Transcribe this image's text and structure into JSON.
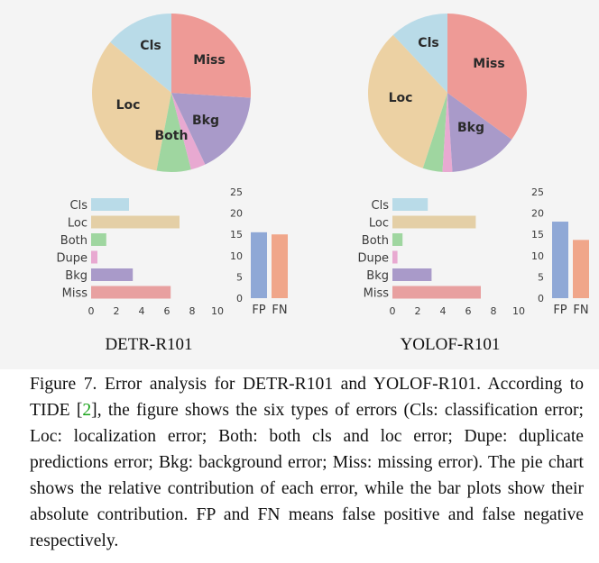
{
  "chart_data": [
    {
      "type": "pie",
      "title": "DETR-R101",
      "categories": [
        "Cls",
        "Loc",
        "Both",
        "Dupe",
        "Bkg",
        "Miss"
      ],
      "values": [
        14,
        33,
        7,
        3,
        17,
        26
      ],
      "colors": [
        "#b9dbe8",
        "#ecd1a3",
        "#9fd6a0",
        "#e8a9d1",
        "#a99ac9",
        "#ee9a96"
      ],
      "label_words": [
        "Cls",
        "Loc",
        "Both",
        "",
        "Bkg",
        "Miss"
      ]
    },
    {
      "type": "bar",
      "title": "DETR-R101",
      "orientation": "horizontal",
      "categories": [
        "Cls",
        "Loc",
        "Both",
        "Dupe",
        "Bkg",
        "Miss"
      ],
      "values": [
        3.0,
        7.0,
        1.2,
        0.5,
        3.3,
        6.3
      ],
      "xlim": [
        0,
        10
      ],
      "xticks": [
        "0",
        "2",
        "4",
        "6",
        "8",
        "10"
      ],
      "colors": [
        "#b9dbe8",
        "#e4cfa6",
        "#9fd6a0",
        "#e8a9d1",
        "#a99ac9",
        "#e8a0a0"
      ]
    },
    {
      "type": "bar",
      "title": "DETR-R101",
      "orientation": "vertical",
      "categories": [
        "FP",
        "FN"
      ],
      "values": [
        15.5,
        15.0
      ],
      "ylim": [
        0,
        25
      ],
      "yticks": [
        "0",
        "5",
        "10",
        "15",
        "20",
        "25"
      ],
      "colors": [
        "#8fa8d6",
        "#f0a68a"
      ]
    },
    {
      "type": "pie",
      "title": "YOLOF-R101",
      "categories": [
        "Cls",
        "Loc",
        "Both",
        "Dupe",
        "Bkg",
        "Miss"
      ],
      "values": [
        12,
        33,
        4,
        2,
        14,
        35
      ],
      "colors": [
        "#b9dbe8",
        "#ecd1a3",
        "#9fd6a0",
        "#e8a9d1",
        "#a99ac9",
        "#ee9a96"
      ],
      "label_words": [
        "Cls",
        "Loc",
        "",
        "",
        "Bkg",
        "Miss"
      ]
    },
    {
      "type": "bar",
      "title": "YOLOF-R101",
      "orientation": "horizontal",
      "categories": [
        "Cls",
        "Loc",
        "Both",
        "Dupe",
        "Bkg",
        "Miss"
      ],
      "values": [
        2.8,
        6.6,
        0.8,
        0.4,
        3.1,
        7.0
      ],
      "xlim": [
        0,
        10
      ],
      "xticks": [
        "0",
        "2",
        "4",
        "6",
        "8",
        "10"
      ],
      "colors": [
        "#b9dbe8",
        "#e4cfa6",
        "#9fd6a0",
        "#e8a9d1",
        "#a99ac9",
        "#e8a0a0"
      ]
    },
    {
      "type": "bar",
      "title": "YOLOF-R101",
      "orientation": "vertical",
      "categories": [
        "FP",
        "FN"
      ],
      "values": [
        18.0,
        13.7
      ],
      "ylim": [
        0,
        25
      ],
      "yticks": [
        "0",
        "5",
        "10",
        "15",
        "20",
        "25"
      ],
      "colors": [
        "#8fa8d6",
        "#f0a68a"
      ]
    }
  ],
  "panels": {
    "left_title": "DETR-R101",
    "right_title": "YOLOF-R101"
  },
  "caption": {
    "p1": "Figure 7. Error analysis for DETR-R101 and YOLOF-R101. According to TIDE [",
    "ref": "2",
    "p2": "], the figure shows the six types of errors (Cls: classification error; Loc: localization error; Both: both cls and loc error; Dupe: duplicate predictions error; Bkg: background error; Miss: missing error). The pie chart shows the relative contribution of each error, while the bar plots show their absolute contribution. FP and FN means false positive and false negative respectively."
  }
}
